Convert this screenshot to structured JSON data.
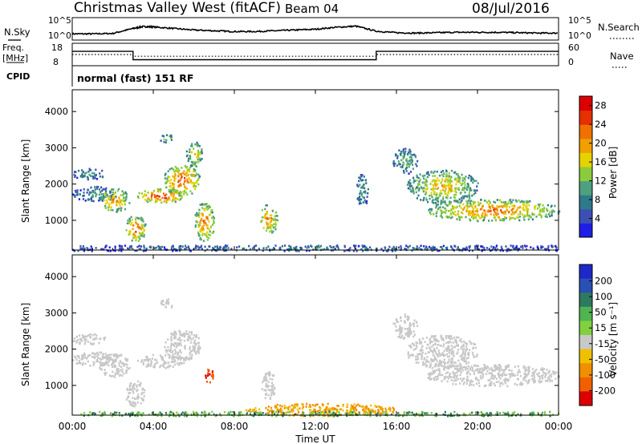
{
  "header": {
    "site": "Christmas Valley West (fitACF)",
    "beam": "Beam 04",
    "date": "08/Jul/2016"
  },
  "side_labels": {
    "nsky": "N.Sky",
    "nsearch": "N.Search",
    "freq_line1": "Freq.",
    "freq_line2": "[MHz]",
    "nave": "Nave",
    "cpid": "CPID",
    "cpid_value": "normal (fast) 151 RF"
  },
  "colors": {
    "noise_line": "#000000",
    "ground_scatter": "#c8c8c8",
    "power_scale": [
      "#1e1ee6",
      "#3c50b4",
      "#2d7a8a",
      "#4ea080",
      "#8ccc3c",
      "#e6d200",
      "#f0a000",
      "#f07000",
      "#e63000",
      "#dc0000"
    ],
    "velocity_scale": [
      "#1e28c8",
      "#2a50b4",
      "#2d7a60",
      "#50b450",
      "#80d040",
      "#f0c000",
      "#f09000",
      "#f06000",
      "#e63000",
      "#dc0000"
    ]
  },
  "chart_data": [
    {
      "type": "line",
      "panel": "noise",
      "left_ticks": [
        "10^5",
        "10^0"
      ],
      "right_ticks": [
        "10^5",
        "10^0"
      ],
      "x_range_hours": [
        0,
        24
      ],
      "series": [
        {
          "name": "N.Sky",
          "x": [
            0,
            1,
            2,
            3,
            3.5,
            4,
            5,
            6,
            7,
            8,
            9,
            10,
            11,
            12,
            13,
            14,
            15,
            16,
            17,
            18,
            19,
            20,
            21,
            22,
            23,
            24
          ],
          "y": [
            1.2,
            1.2,
            1.3,
            2.6,
            3.1,
            3.0,
            2.6,
            2.2,
            2.0,
            1.8,
            1.8,
            2.0,
            2.2,
            2.4,
            2.9,
            3.2,
            1.9,
            1.5,
            1.4,
            1.5,
            1.6,
            1.6,
            1.6,
            1.5,
            1.4,
            1.4
          ]
        },
        {
          "name": "N.Search",
          "x": [
            0,
            24
          ],
          "y": [
            1.0,
            1.0
          ]
        }
      ]
    },
    {
      "type": "line",
      "panel": "frequency",
      "left_ticks": [
        "18",
        "8"
      ],
      "right_ticks": [
        "60",
        "0"
      ],
      "x_range_hours": [
        0,
        24
      ],
      "series": [
        {
          "name": "Freq.",
          "unit": "MHz",
          "x": [
            0,
            3,
            3,
            15,
            15,
            24
          ],
          "y": [
            14.5,
            14.5,
            10.5,
            10.5,
            14.5,
            14.5
          ]
        },
        {
          "name": "Nave",
          "x": [
            0,
            3,
            3,
            15,
            15,
            24
          ],
          "y": [
            30,
            30,
            25,
            25,
            30,
            30
          ]
        }
      ]
    },
    {
      "type": "heatmap",
      "panel": "power",
      "ylabel": "Slant Range [km]",
      "yticks": [
        1000,
        2000,
        3000,
        4000
      ],
      "ylim": [
        180,
        4600
      ],
      "xlim_hours": [
        0,
        24
      ],
      "colorbar_label": "Power [dB]",
      "colorbar_ticks": [
        4,
        8,
        12,
        16,
        20,
        24,
        28
      ],
      "colorbar_range": [
        0,
        30
      ],
      "regions": [
        {
          "t0": 0.0,
          "t1": 1.6,
          "r0": 2150,
          "r1": 2450,
          "level": 10
        },
        {
          "t0": 0.0,
          "t1": 2.2,
          "r0": 1550,
          "r1": 1950,
          "level": 10
        },
        {
          "t0": 1.3,
          "t1": 2.8,
          "r0": 1250,
          "r1": 1900,
          "level": 20
        },
        {
          "t0": 2.6,
          "t1": 3.6,
          "r0": 450,
          "r1": 1150,
          "level": 24
        },
        {
          "t0": 3.2,
          "t1": 5.5,
          "r0": 1500,
          "r1": 1900,
          "level": 26
        },
        {
          "t0": 4.5,
          "t1": 6.3,
          "r0": 1700,
          "r1": 2550,
          "level": 24
        },
        {
          "t0": 5.6,
          "t1": 6.4,
          "r0": 2500,
          "r1": 3200,
          "level": 18
        },
        {
          "t0": 4.3,
          "t1": 5.0,
          "r0": 3150,
          "r1": 3400,
          "level": 14
        },
        {
          "t0": 6.0,
          "t1": 7.0,
          "r0": 450,
          "r1": 1500,
          "level": 22
        },
        {
          "t0": 9.2,
          "t1": 10.1,
          "r0": 650,
          "r1": 1450,
          "level": 22
        },
        {
          "t0": 14.0,
          "t1": 14.6,
          "r0": 1400,
          "r1": 2300,
          "level": 10
        },
        {
          "t0": 15.8,
          "t1": 17.0,
          "r0": 2300,
          "r1": 3000,
          "level": 12
        },
        {
          "t0": 16.5,
          "t1": 20.0,
          "r0": 1500,
          "r1": 2400,
          "level": 18
        },
        {
          "t0": 17.5,
          "t1": 24.0,
          "r0": 1000,
          "r1": 1600,
          "level": 22
        },
        {
          "t0": 0.0,
          "t1": 24.0,
          "r0": 180,
          "r1": 330,
          "level": 8
        }
      ]
    },
    {
      "type": "heatmap",
      "panel": "velocity",
      "ylabel": "Slant Range [km]",
      "yticks": [
        1000,
        2000,
        3000,
        4000
      ],
      "ylim": [
        180,
        4600
      ],
      "xlim_hours": [
        0,
        24
      ],
      "xticks": [
        "00:00",
        "04:00",
        "08:00",
        "12:00",
        "16:00",
        "20:00",
        "00:00"
      ],
      "xlabel": "Time UT",
      "colorbar_label": "Velocity [m s⁻¹]",
      "colorbar_ticks": [
        "200",
        "100",
        "50",
        "15",
        "-15",
        "-50",
        "-100",
        "-200"
      ],
      "regions": [
        {
          "t0": 0.0,
          "t1": 1.6,
          "r0": 2150,
          "r1": 2450,
          "kind": "ground"
        },
        {
          "t0": 0.0,
          "t1": 2.2,
          "r0": 1550,
          "r1": 1950,
          "kind": "ground"
        },
        {
          "t0": 1.3,
          "t1": 2.8,
          "r0": 1250,
          "r1": 1900,
          "kind": "ground"
        },
        {
          "t0": 2.6,
          "t1": 3.6,
          "r0": 450,
          "r1": 1150,
          "kind": "ground"
        },
        {
          "t0": 3.2,
          "t1": 5.5,
          "r0": 1500,
          "r1": 1900,
          "kind": "ground"
        },
        {
          "t0": 4.5,
          "t1": 6.3,
          "r0": 1700,
          "r1": 2550,
          "kind": "ground"
        },
        {
          "t0": 4.3,
          "t1": 5.0,
          "r0": 3150,
          "r1": 3400,
          "kind": "ground"
        },
        {
          "t0": 6.5,
          "t1": 7.0,
          "r0": 1100,
          "r1": 1500,
          "kind": "velocity",
          "value": -150
        },
        {
          "t0": 9.3,
          "t1": 10.0,
          "r0": 650,
          "r1": 1400,
          "kind": "ground"
        },
        {
          "t0": 15.8,
          "t1": 17.0,
          "r0": 2300,
          "r1": 3000,
          "kind": "ground"
        },
        {
          "t0": 16.5,
          "t1": 20.0,
          "r0": 1500,
          "r1": 2400,
          "kind": "ground"
        },
        {
          "t0": 17.5,
          "t1": 24.0,
          "r0": 1000,
          "r1": 1600,
          "kind": "ground"
        },
        {
          "t0": 8.5,
          "t1": 16.0,
          "r0": 180,
          "r1": 520,
          "kind": "velocity",
          "value": -60
        },
        {
          "t0": 0.0,
          "t1": 24.0,
          "r0": 180,
          "r1": 300,
          "kind": "velocity",
          "value": 20
        }
      ]
    }
  ]
}
